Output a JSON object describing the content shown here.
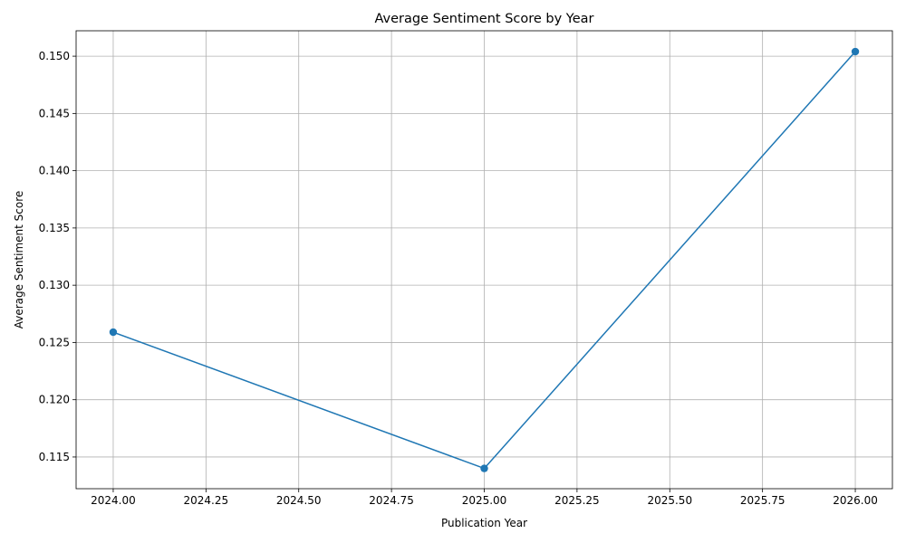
{
  "chart_data": {
    "type": "line",
    "title": "Average Sentiment Score by Year",
    "xlabel": "Publication Year",
    "ylabel": "Average Sentiment Score",
    "x": [
      2024,
      2025,
      2026
    ],
    "series": [
      {
        "values": [
          0.1259,
          0.114,
          0.1504
        ],
        "color": "#1f77b4",
        "marker": "circle"
      }
    ],
    "xlim": [
      2023.9,
      2026.1
    ],
    "ylim": [
      0.11223,
      0.15222
    ],
    "x_ticks": [
      "2024.00",
      "2024.25",
      "2024.50",
      "2024.75",
      "2025.00",
      "2025.25",
      "2025.50",
      "2025.75",
      "2026.00"
    ],
    "x_tick_values": [
      2024.0,
      2024.25,
      2024.5,
      2024.75,
      2025.0,
      2025.25,
      2025.5,
      2025.75,
      2026.0
    ],
    "y_ticks": [
      "0.115",
      "0.120",
      "0.125",
      "0.130",
      "0.135",
      "0.140",
      "0.145",
      "0.150"
    ],
    "y_tick_values": [
      0.115,
      0.12,
      0.125,
      0.13,
      0.135,
      0.14,
      0.145,
      0.15
    ],
    "grid": true,
    "legend": "none"
  }
}
